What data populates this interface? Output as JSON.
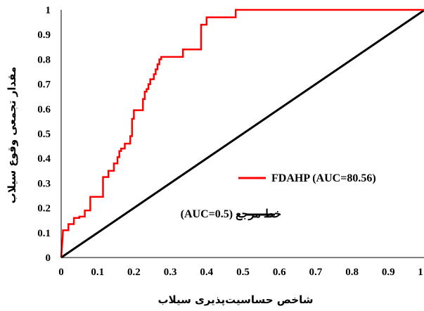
{
  "chart_data": {
    "type": "line",
    "xlabel": "شاخص حساسیت‌پذیری سیلاب",
    "ylabel": "مقدار تجمعی وقوع سیلاب",
    "xlim": [
      0,
      1
    ],
    "ylim": [
      0,
      1
    ],
    "x_ticks": [
      "0",
      "0.1",
      "0.2",
      "0.3",
      "0.4",
      "0.5",
      "0.6",
      "0.7",
      "0.8",
      "0.9",
      "1"
    ],
    "y_ticks": [
      "0",
      "0.1",
      "0.2",
      "0.3",
      "0.4",
      "0.5",
      "0.6",
      "0.7",
      "0.8",
      "0.9",
      "1"
    ],
    "grid": false,
    "legend_position": "center-right",
    "series": [
      {
        "name": "FDAHP (AUC=80.56)",
        "color": "#ff0000",
        "x": [
          0,
          0.002,
          0.004,
          0.005,
          0.02,
          0.02,
          0.035,
          0.035,
          0.05,
          0.05,
          0.065,
          0.065,
          0.08,
          0.08,
          0.115,
          0.115,
          0.13,
          0.13,
          0.145,
          0.145,
          0.155,
          0.155,
          0.16,
          0.16,
          0.165,
          0.165,
          0.175,
          0.175,
          0.19,
          0.19,
          0.195,
          0.195,
          0.2,
          0.2,
          0.225,
          0.225,
          0.23,
          0.23,
          0.235,
          0.235,
          0.24,
          0.24,
          0.245,
          0.245,
          0.255,
          0.255,
          0.26,
          0.26,
          0.265,
          0.265,
          0.27,
          0.27,
          0.275,
          0.275,
          0.28,
          0.28,
          0.335,
          0.335,
          0.385,
          0.385,
          0.4,
          0.4,
          0.435,
          0.435,
          0.48,
          0.48,
          0.57,
          1
        ],
        "y": [
          0,
          0.04,
          0.08,
          0.11,
          0.11,
          0.135,
          0.135,
          0.16,
          0.16,
          0.165,
          0.165,
          0.19,
          0.19,
          0.245,
          0.245,
          0.325,
          0.325,
          0.35,
          0.35,
          0.38,
          0.38,
          0.405,
          0.405,
          0.43,
          0.43,
          0.44,
          0.44,
          0.46,
          0.46,
          0.49,
          0.49,
          0.56,
          0.56,
          0.595,
          0.595,
          0.64,
          0.64,
          0.67,
          0.67,
          0.68,
          0.68,
          0.7,
          0.7,
          0.72,
          0.72,
          0.74,
          0.74,
          0.76,
          0.76,
          0.78,
          0.78,
          0.8,
          0.8,
          0.81,
          0.81,
          0.81,
          0.81,
          0.84,
          0.84,
          0.94,
          0.94,
          0.97,
          0.97,
          0.97,
          0.97,
          1.0,
          1.0,
          1.0
        ]
      },
      {
        "name": "خط مرجع (AUC=0.5)",
        "color": "#000000",
        "x": [
          0,
          1
        ],
        "y": [
          0,
          1
        ]
      }
    ]
  }
}
